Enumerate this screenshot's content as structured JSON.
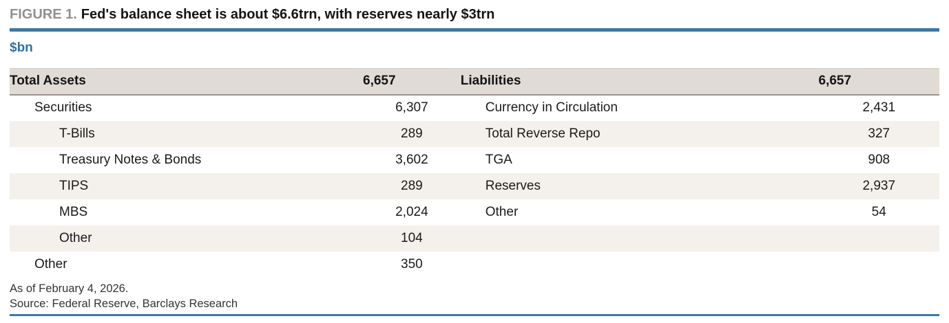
{
  "figure": {
    "label": "FIGURE 1.",
    "title": "Fed's balance sheet is about $6.6trn, with reserves nearly $3trn",
    "unit": "$bn"
  },
  "colors": {
    "accent_blue": "#3a79a8",
    "unit_blue": "#2e70a6",
    "figure_label_gray": "#909090",
    "header_bg": "#e0dbd4",
    "stripe_bg": "#f4f0eb",
    "text_dark": "#1a1a1a"
  },
  "table": {
    "header": {
      "assets_label": "Total Assets",
      "assets_total": "6,657",
      "liabilities_label": "Liabilities",
      "liabilities_total": "6,657"
    },
    "rows": [
      {
        "asset_label": "Securities",
        "asset_value": "6,307",
        "liability_label": "Currency in Circulation",
        "liability_value": "2,431"
      },
      {
        "asset_label": "T-Bills",
        "asset_value": "289",
        "liability_label": "Total Reverse Repo",
        "liability_value": "327"
      },
      {
        "asset_label": "Treasury Notes & Bonds",
        "asset_value": "3,602",
        "liability_label": "TGA",
        "liability_value": "908"
      },
      {
        "asset_label": "TIPS",
        "asset_value": "289",
        "liability_label": "Reserves",
        "liability_value": "2,937"
      },
      {
        "asset_label": "MBS",
        "asset_value": "2,024",
        "liability_label": "Other",
        "liability_value": "54"
      },
      {
        "asset_label": "Other",
        "asset_value": "104",
        "liability_label": "",
        "liability_value": ""
      },
      {
        "asset_label": "Other",
        "asset_value": "350",
        "liability_label": "",
        "liability_value": ""
      }
    ]
  },
  "footnotes": {
    "as_of": "As of February 4, 2026.",
    "source": "Source: Federal Reserve, Barclays Research"
  },
  "chart_data": {
    "type": "table",
    "title": "Fed's balance sheet is about $6.6trn, with reserves nearly $3trn",
    "unit": "$bn",
    "assets": {
      "label": "Total Assets",
      "total": 6657,
      "items": [
        {
          "label": "Securities",
          "value": 6307,
          "level": 1
        },
        {
          "label": "T-Bills",
          "value": 289,
          "level": 2
        },
        {
          "label": "Treasury Notes & Bonds",
          "value": 3602,
          "level": 2
        },
        {
          "label": "TIPS",
          "value": 289,
          "level": 2
        },
        {
          "label": "MBS",
          "value": 2024,
          "level": 2
        },
        {
          "label": "Other",
          "value": 104,
          "level": 2
        },
        {
          "label": "Other",
          "value": 350,
          "level": 1
        }
      ]
    },
    "liabilities": {
      "label": "Liabilities",
      "total": 6657,
      "items": [
        {
          "label": "Currency in Circulation",
          "value": 2431,
          "level": 1
        },
        {
          "label": "Total Reverse Repo",
          "value": 327,
          "level": 1
        },
        {
          "label": "TGA",
          "value": 908,
          "level": 1
        },
        {
          "label": "Reserves",
          "value": 2937,
          "level": 1
        },
        {
          "label": "Other",
          "value": 54,
          "level": 1
        }
      ]
    },
    "as_of": "As of February 4, 2026.",
    "source": "Source: Federal Reserve, Barclays Research"
  }
}
